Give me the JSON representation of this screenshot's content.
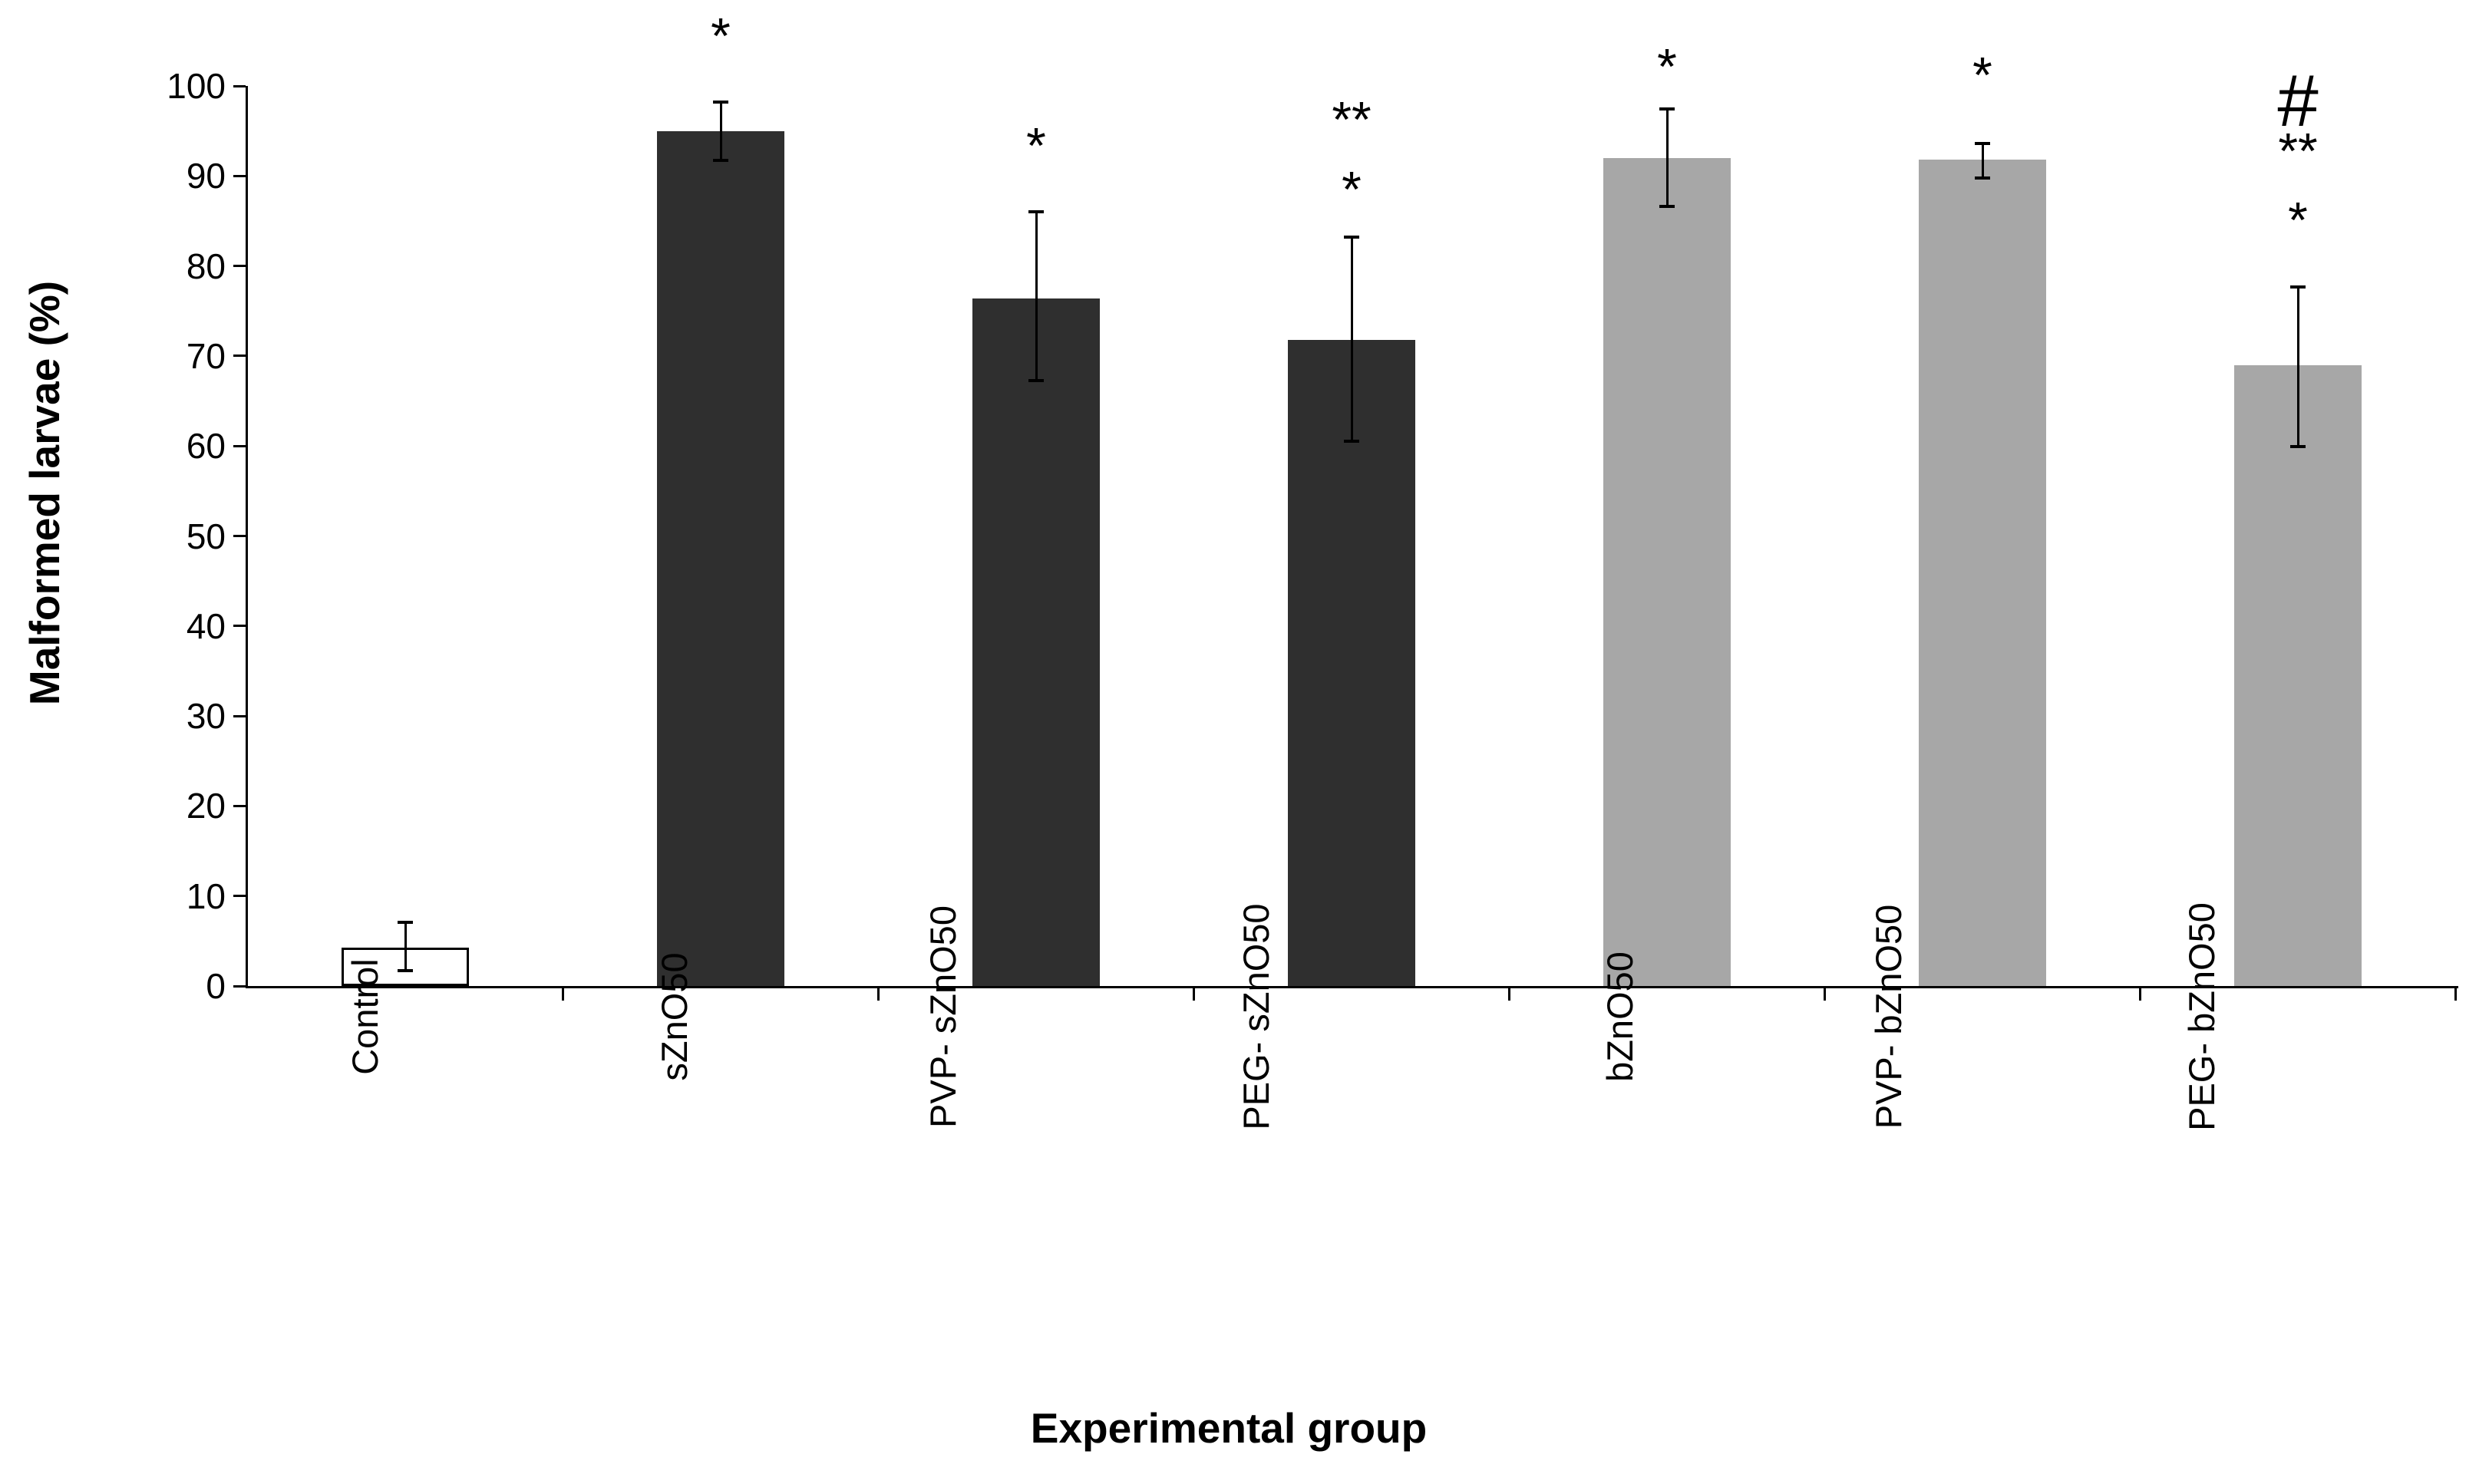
{
  "figure": {
    "background": "#ffffff",
    "axis_color": "#000000",
    "bar_dark_color": "#2f2f2f",
    "bar_gray_color": "#a7a7a7",
    "bar_outline_fill": "#ffffff",
    "error_bar_color": "#000000"
  },
  "chart_data": {
    "type": "bar",
    "title": "",
    "xlabel": "Experimental group",
    "ylabel": "Malformed larvae (%)",
    "ylim": [
      0,
      100
    ],
    "yticks": [
      0,
      10,
      20,
      30,
      40,
      50,
      60,
      70,
      80,
      90,
      100
    ],
    "grid": false,
    "legend_position": "none",
    "categories": [
      "Control",
      "sZnO50",
      "PVP- sZnO50",
      "PEG- sZnO50",
      "bZnO50",
      "PVP- bZnO50",
      "PEG- bZnO50"
    ],
    "values": [
      4.3,
      95.0,
      76.4,
      71.8,
      92.0,
      91.8,
      69.0
    ],
    "error_up": [
      2.8,
      3.2,
      9.6,
      11.4,
      5.4,
      1.8,
      8.7
    ],
    "error_down": [
      2.6,
      3.3,
      9.1,
      11.3,
      5.4,
      2.0,
      9.1
    ],
    "bar_styles": [
      "outline",
      "dark",
      "dark",
      "dark",
      "gray",
      "gray",
      "gray"
    ],
    "significance": [
      [],
      [
        {
          "symbol": "*",
          "at": 104.7
        }
      ],
      [
        {
          "symbol": "*",
          "at": 92.5
        }
      ],
      [
        {
          "symbol": "**",
          "at": 95.4
        },
        {
          "symbol": "*",
          "at": 87.6
        }
      ],
      [
        {
          "symbol": "*",
          "at": 101.3
        }
      ],
      [
        {
          "symbol": "*",
          "at": 100.3
        }
      ],
      [
        {
          "symbol": "#",
          "at": 98.5
        },
        {
          "symbol": "**",
          "at": 91.9
        },
        {
          "symbol": "*",
          "at": 84.2
        }
      ]
    ]
  }
}
